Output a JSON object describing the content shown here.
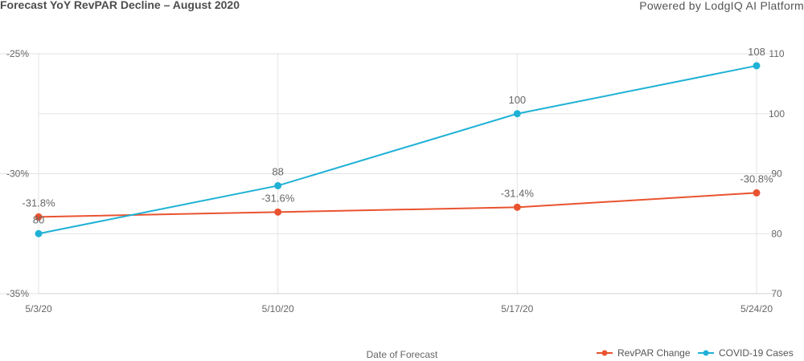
{
  "header": {
    "title": "Forecast YoY RevPAR Decline – August 2020",
    "powered_by": "Powered by LodgIQ AI Platform"
  },
  "colors": {
    "revpar": "#e9532f",
    "covid": "#1fb1d6",
    "grid": "#e3e3e3"
  },
  "chart_data": {
    "type": "line",
    "title": "Forecast YoY RevPAR Decline – August 2020",
    "xlabel": "Date of Forecast",
    "categories": [
      "5/3/20",
      "5/10/20",
      "5/17/20",
      "5/24/20"
    ],
    "y_left": {
      "ylim": [
        -35,
        -25
      ],
      "ticks": [
        -35,
        -30,
        -25
      ],
      "tick_labels": [
        "-35%",
        "-30%",
        "-25%"
      ]
    },
    "y_right": {
      "ylim": [
        70,
        110
      ],
      "ticks": [
        70,
        80,
        90,
        100,
        110
      ],
      "tick_labels": [
        "70",
        "80",
        "90",
        "100",
        "110"
      ]
    },
    "series": [
      {
        "name": "RevPAR Change",
        "axis": "left",
        "color": "#e9532f",
        "values": [
          -31.8,
          -31.6,
          -31.4,
          -30.8
        ],
        "labels": [
          "-31.8%",
          "-31.6%",
          "-31.4%",
          "-30.8%"
        ]
      },
      {
        "name": "COVID-19 Cases",
        "axis": "right",
        "color": "#1fb1d6",
        "values": [
          80,
          88,
          100,
          108
        ],
        "labels": [
          "80",
          "88",
          "100",
          "108"
        ]
      }
    ],
    "grid": true,
    "legend": "bottom-right"
  }
}
